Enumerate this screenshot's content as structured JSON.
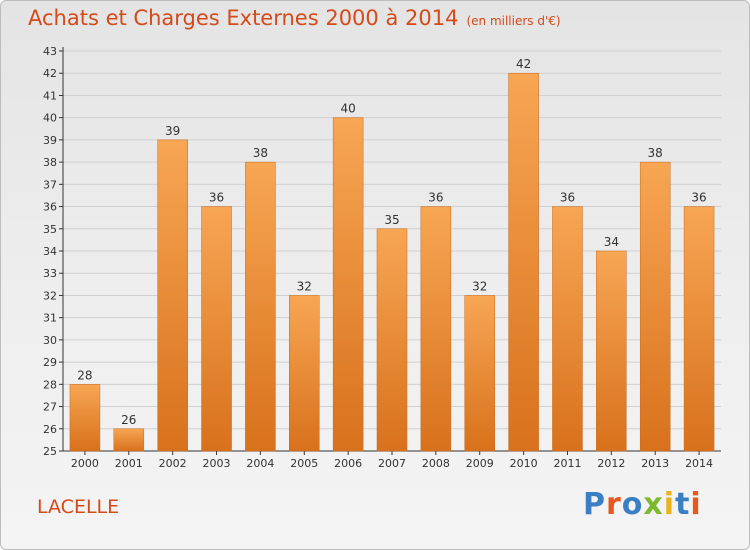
{
  "title": "Achats et Charges Externes 2000 à 2014",
  "unit_note": "(en milliers d'€)",
  "commune": "LACELLE",
  "logo": {
    "text": "Proxiti",
    "letters": [
      {
        "ch": "P",
        "color": "#3a7fc4"
      },
      {
        "ch": "r",
        "color": "#e8581c"
      },
      {
        "ch": "o",
        "color": "#3a7fc4"
      },
      {
        "ch": "x",
        "color": "#7cb830"
      },
      {
        "ch": "i",
        "color": "#e8b31c"
      },
      {
        "ch": "t",
        "color": "#3a7fc4"
      },
      {
        "ch": "i",
        "color": "#e8581c"
      }
    ]
  },
  "colors": {
    "accent": "#d44a1a",
    "bar_top": "#f7a654",
    "bar_bottom": "#d8711c",
    "grid": "#d0d0d0"
  },
  "chart_data": {
    "type": "bar",
    "title": "Achats et Charges Externes 2000 à 2014",
    "xlabel": "",
    "ylabel": "",
    "categories": [
      "2000",
      "2001",
      "2002",
      "2003",
      "2004",
      "2005",
      "2006",
      "2007",
      "2008",
      "2009",
      "2010",
      "2011",
      "2012",
      "2013",
      "2014"
    ],
    "values": [
      28,
      26,
      39,
      36,
      38,
      32,
      40,
      35,
      36,
      32,
      42,
      36,
      34,
      38,
      36
    ],
    "ylim": [
      25,
      43
    ],
    "yticks": [
      25,
      26,
      27,
      28,
      29,
      30,
      31,
      32,
      33,
      34,
      35,
      36,
      37,
      38,
      39,
      40,
      41,
      42,
      43
    ],
    "grid": true,
    "data_labels": true
  }
}
